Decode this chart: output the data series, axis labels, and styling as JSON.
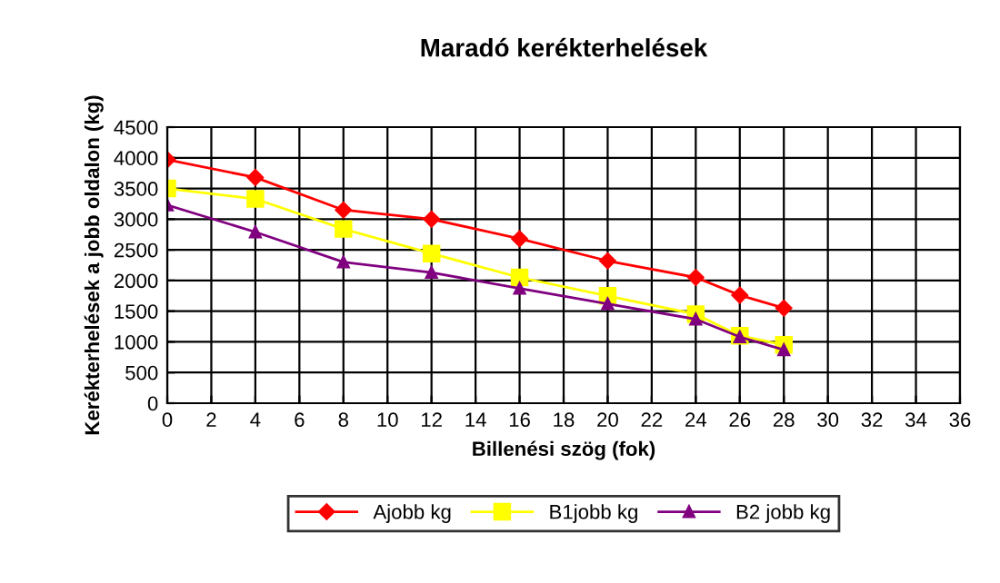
{
  "chart_data": {
    "type": "line",
    "title": "Maradó kerékterhelések",
    "xlabel": "Billenési szög (fok)",
    "ylabel": "Kerékterhelések a jobb oldalon (kg)",
    "x": [
      0,
      4,
      8,
      12,
      16,
      20,
      24,
      26,
      28
    ],
    "series": [
      {
        "name": "Ajobb kg",
        "color": "#ff0000",
        "marker": "diamond",
        "values": [
          3970,
          3680,
          3150,
          3000,
          2680,
          2320,
          2050,
          1760,
          1550
        ]
      },
      {
        "name": "B1jobb kg",
        "color": "#ffff00",
        "marker": "square",
        "values": [
          3500,
          3330,
          2840,
          2440,
          2050,
          1750,
          1450,
          1100,
          950
        ]
      },
      {
        "name": "B2 jobb kg",
        "color": "#800080",
        "marker": "triangle",
        "values": [
          3230,
          2790,
          2300,
          2130,
          1870,
          1620,
          1370,
          1080,
          870
        ]
      }
    ],
    "xlim": [
      0,
      36
    ],
    "xticks": [
      0,
      2,
      4,
      6,
      8,
      10,
      12,
      14,
      16,
      18,
      20,
      22,
      24,
      26,
      28,
      30,
      32,
      34,
      36
    ],
    "ylim": [
      0,
      4500
    ],
    "yticks": [
      0,
      500,
      1000,
      1500,
      2000,
      2500,
      3000,
      3500,
      4000,
      4500
    ],
    "grid": true,
    "legend": "bottom",
    "line_style": "solid"
  }
}
